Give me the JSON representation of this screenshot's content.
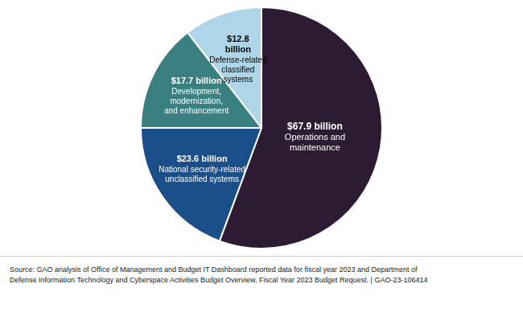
{
  "chart_data": {
    "type": "pie",
    "categories": [
      "Operations and\nmaintenance",
      "National security-related\nunclassified systems",
      "Development,\nmodernization,\nand enhancement",
      "Defense-related\nclassified\nsystems"
    ],
    "values": [
      67.9,
      23.6,
      17.7,
      12.8
    ],
    "value_labels": [
      "$67.9 billion",
      "$23.6 billion",
      "$17.7 billion",
      "$12.8\nbillion"
    ],
    "colors": [
      "#2D1B33",
      "#1B4F8A",
      "#3A8080",
      "#AED6E8"
    ],
    "data_labels": true,
    "annotations": [
      "Source: GAO analysis of Office of Management and Budget IT Dashboard reported data for fiscal year 2023 and Department of\nDefense Information Technology and Cyberspace Activities Budget Overview, Fiscal Year 2023 Budget Request.  |  GAO-23-106414"
    ]
  }
}
